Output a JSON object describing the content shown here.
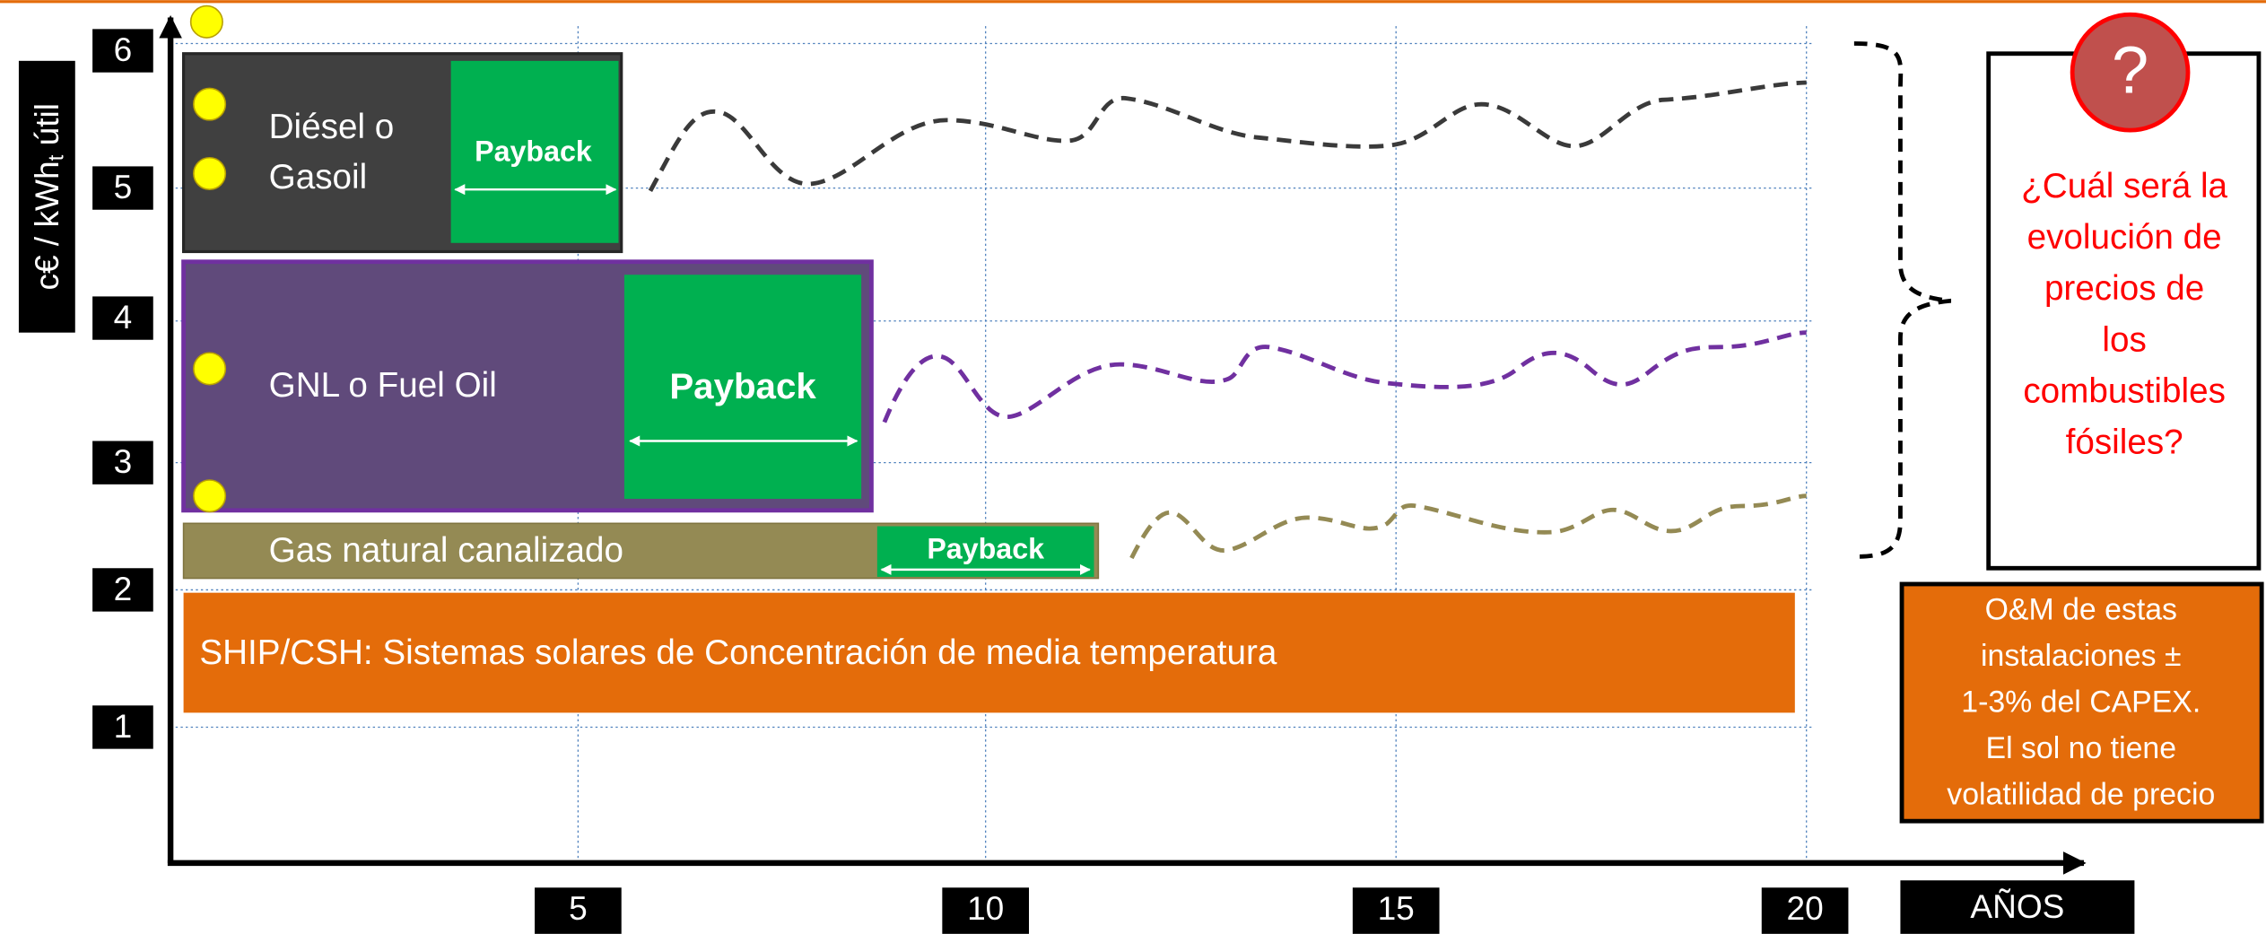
{
  "y_axis": {
    "label": "c€ / kWh",
    "label_sub": "t",
    "label_end": " útil",
    "ticks": [
      6,
      5,
      4,
      3,
      2,
      1
    ]
  },
  "x_axis": {
    "label": "AÑOS",
    "ticks": [
      5,
      10,
      15,
      20
    ]
  },
  "bars": [
    {
      "label": [
        "Diésel o",
        "Gasoil"
      ],
      "payback": "Payback"
    },
    {
      "label": [
        "GNL o Fuel Oil"
      ],
      "payback": "Payback"
    },
    {
      "label": [
        "Gas natural canalizado"
      ],
      "payback": "Payback"
    },
    {
      "label": [
        "SHIP/CSH: Sistemas solares de Concentración de media temperatura"
      ]
    }
  ],
  "question": {
    "symbol": "?",
    "lines": [
      "¿Cuál será la",
      "evolución de",
      "precios de",
      "los",
      "combustibles",
      "fósiles?"
    ]
  },
  "note": {
    "lines": [
      "O&M de estas",
      "instalaciones ±",
      "1-3% del CAPEX.",
      "El sol no tiene",
      "volatilidad de precio"
    ]
  }
}
